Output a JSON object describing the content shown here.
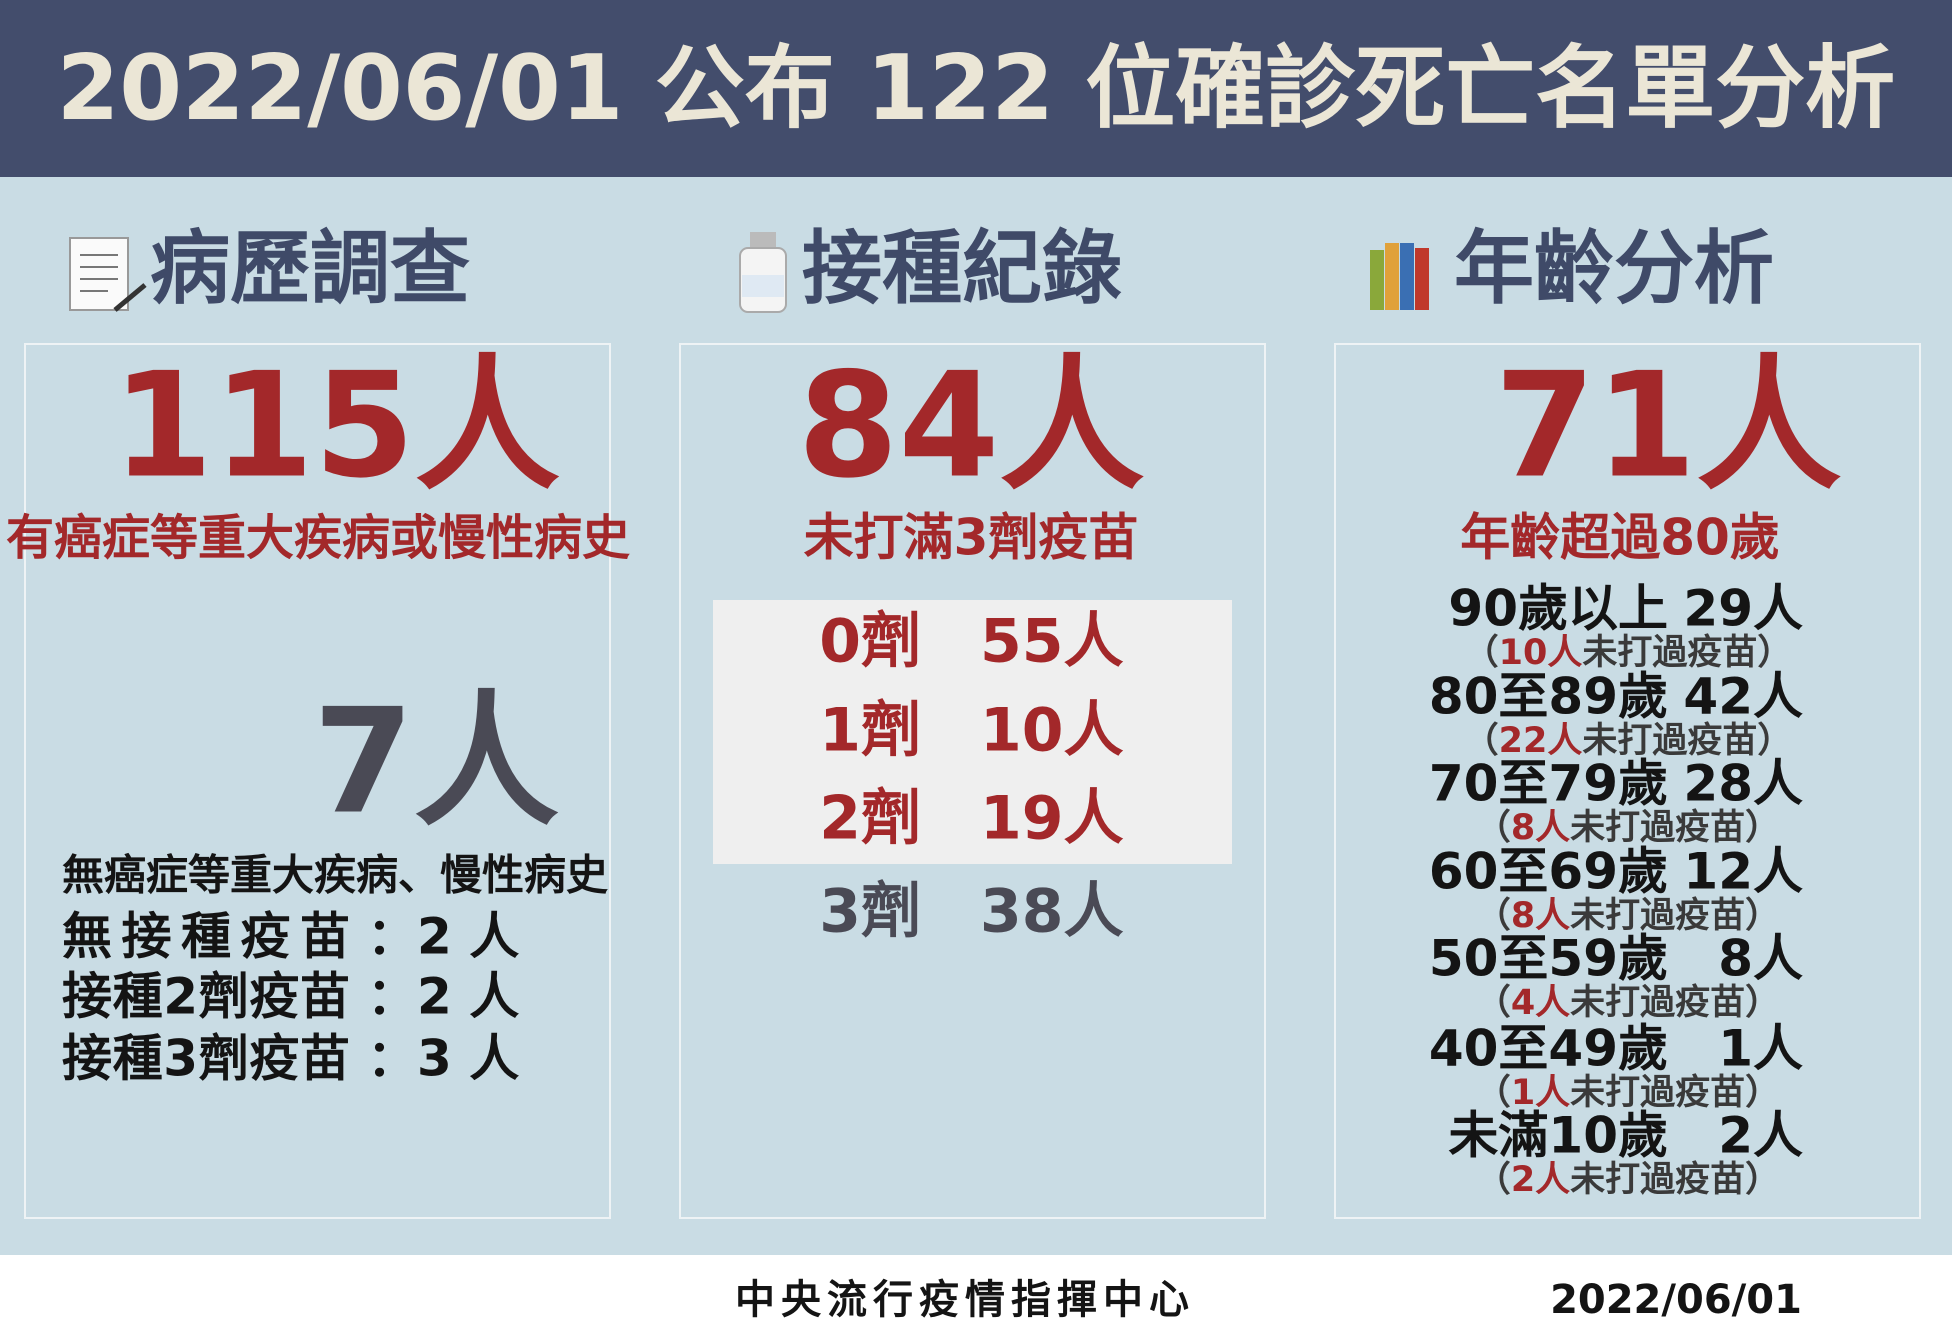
{
  "header": {
    "title": "2022/06/01 公布 122 位確診死亡名單分析"
  },
  "medical_history": {
    "heading": "病歷調查",
    "main_count": "115人",
    "main_caption": "有癌症等重大疾病或慢性病史",
    "secondary_count": "7人",
    "secondary_caption": "無癌症等重大疾病、慢性病史",
    "lines": [
      {
        "label": "無接種疫苗",
        "value": "：2 人"
      },
      {
        "label": "接種2劑疫苗",
        "value": "：2 人"
      },
      {
        "label": "接種3劑疫苗",
        "value": "：3 人"
      }
    ]
  },
  "vaccination": {
    "heading": "接種紀錄",
    "main_count": "84人",
    "main_caption": "未打滿3劑疫苗",
    "rows": [
      {
        "dose": "0劑",
        "count": "55人"
      },
      {
        "dose": "1劑",
        "count": "10人"
      },
      {
        "dose": "2劑",
        "count": "19人"
      },
      {
        "dose": "3劑",
        "count": "38人"
      }
    ]
  },
  "age": {
    "heading": "年齡分析",
    "main_count": "71人",
    "main_caption": "年齡超過80歲",
    "rows": [
      {
        "group": "90歲以上",
        "count": "29人",
        "note": {
          "open": "（",
          "unvaccinated": "10人",
          "rest": "未打過疫苗）"
        }
      },
      {
        "group": "80至89歲",
        "count": "42人",
        "note": {
          "open": "（",
          "unvaccinated": "22人",
          "rest": "未打過疫苗）"
        }
      },
      {
        "group": "70至79歲",
        "count": "28人",
        "note": {
          "open": "（",
          "unvaccinated": "8人",
          "rest": "未打過疫苗）"
        }
      },
      {
        "group": "60至69歲",
        "count": "12人",
        "note": {
          "open": "（",
          "unvaccinated": "8人",
          "rest": "未打過疫苗）"
        }
      },
      {
        "group": "50至59歲",
        "count": "8人",
        "note": {
          "open": "（",
          "unvaccinated": "4人",
          "rest": "未打過疫苗）"
        }
      },
      {
        "group": "40至49歲",
        "count": "1人",
        "note": {
          "open": "（",
          "unvaccinated": "1人",
          "rest": "未打過疫苗）"
        }
      },
      {
        "group": "未滿10歲",
        "count": "2人",
        "note": {
          "open": "（",
          "unvaccinated": "2人",
          "rest": "未打過疫苗）"
        }
      }
    ]
  },
  "footer": {
    "agency": "中央流行疫情指揮中心",
    "date": "2022/06/01"
  }
}
